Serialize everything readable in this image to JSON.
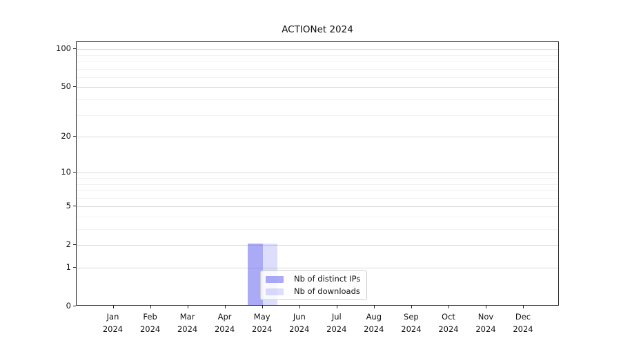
{
  "figure": {
    "title": "ACTIONet 2024",
    "background": "#ffffff"
  },
  "legend": {
    "items": [
      {
        "label": "Nb of distinct IPs",
        "color": "rgba(85,85,238,0.5)"
      },
      {
        "label": "Nb of downloads",
        "color": "rgba(85,85,238,0.2)"
      }
    ]
  },
  "chart_data": {
    "type": "bar",
    "title": "ACTIONet 2024",
    "categories": [
      "Jan",
      "Feb",
      "Mar",
      "Apr",
      "May",
      "Jun",
      "Jul",
      "Aug",
      "Sep",
      "Oct",
      "Nov",
      "Dec"
    ],
    "category_year": "2024",
    "series": [
      {
        "name": "Nb of distinct IPs",
        "color": "rgba(85,85,238,0.5)",
        "values": [
          0,
          0,
          0,
          0,
          2,
          0,
          0,
          0,
          0,
          0,
          0,
          0
        ]
      },
      {
        "name": "Nb of downloads",
        "color": "rgba(85,85,238,0.2)",
        "values": [
          0,
          0,
          0,
          0,
          2,
          0,
          0,
          0,
          0,
          0,
          0,
          0
        ]
      }
    ],
    "xlabel": "",
    "ylabel": "",
    "yscale": "log1p",
    "ylim": [
      0,
      114
    ],
    "y_ticks": [
      0,
      1,
      2,
      5,
      10,
      20,
      50,
      100
    ],
    "y_tick_labels": [
      "0",
      "1",
      "2",
      "5",
      "10",
      "20",
      "50",
      "100"
    ],
    "y_minor_ticks": [
      3,
      4,
      6,
      7,
      8,
      9,
      30,
      40,
      60,
      70,
      80,
      90
    ],
    "grid": "horizontal",
    "legend_position": "lower center",
    "colors": {
      "grid_major": "#d9d9d9",
      "grid_minor": "#f2f2f2",
      "spine": "#262626",
      "text": "#111111"
    }
  }
}
